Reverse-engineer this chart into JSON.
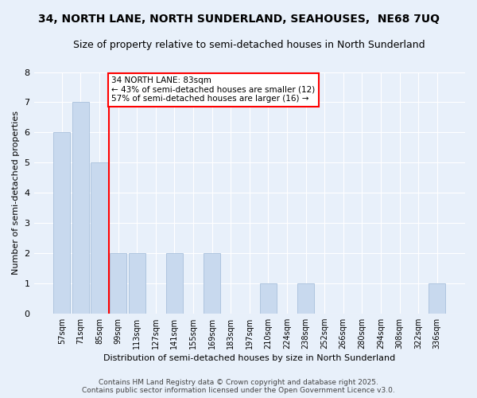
{
  "title": "34, NORTH LANE, NORTH SUNDERLAND, SEAHOUSES,  NE68 7UQ",
  "subtitle": "Size of property relative to semi-detached houses in North Sunderland",
  "xlabel": "Distribution of semi-detached houses by size in North Sunderland",
  "ylabel": "Number of semi-detached properties",
  "categories": [
    "57sqm",
    "71sqm",
    "85sqm",
    "99sqm",
    "113sqm",
    "127sqm",
    "141sqm",
    "155sqm",
    "169sqm",
    "183sqm",
    "197sqm",
    "210sqm",
    "224sqm",
    "238sqm",
    "252sqm",
    "266sqm",
    "280sqm",
    "294sqm",
    "308sqm",
    "322sqm",
    "336sqm"
  ],
  "values": [
    6,
    7,
    5,
    2,
    2,
    0,
    2,
    0,
    2,
    0,
    0,
    1,
    0,
    1,
    0,
    0,
    0,
    0,
    0,
    0,
    1
  ],
  "bar_color": "#c8d9ee",
  "bar_edgecolor": "#a8c0dc",
  "red_line_index": 2,
  "annotation_title": "34 NORTH LANE: 83sqm",
  "annotation_line1": "← 43% of semi-detached houses are smaller (12)",
  "annotation_line2": "57% of semi-detached houses are larger (16) →",
  "ylim": [
    0,
    8
  ],
  "yticks": [
    0,
    1,
    2,
    3,
    4,
    5,
    6,
    7,
    8
  ],
  "footer1": "Contains HM Land Registry data © Crown copyright and database right 2025.",
  "footer2": "Contains public sector information licensed under the Open Government Licence v3.0.",
  "background_color": "#e8f0fa",
  "plot_bg_color": "#e8f0fa",
  "grid_color": "#ffffff",
  "title_fontsize": 10,
  "subtitle_fontsize": 9,
  "ylabel_fontsize": 8,
  "xlabel_fontsize": 8,
  "tick_fontsize": 7,
  "footer_fontsize": 6.5
}
